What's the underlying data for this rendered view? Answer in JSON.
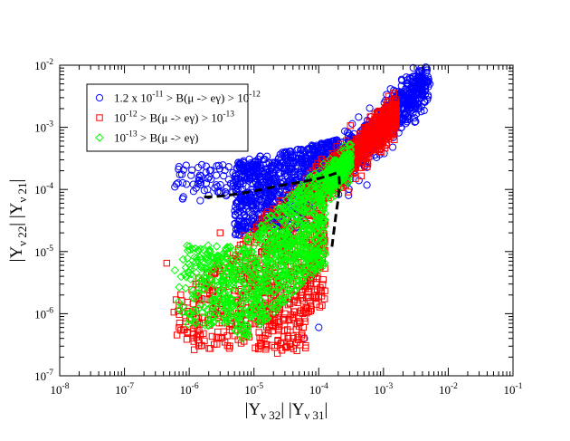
{
  "chart_data": {
    "type": "scatter",
    "x_scale": "log",
    "y_scale": "log",
    "xlim": [
      1e-08,
      0.1
    ],
    "ylim": [
      1e-07,
      0.01
    ],
    "x_ticks": [
      {
        "value": 1e-08,
        "base": "10",
        "exp": "-8"
      },
      {
        "value": 1e-07,
        "base": "10",
        "exp": "-7"
      },
      {
        "value": 1e-06,
        "base": "10",
        "exp": "-6"
      },
      {
        "value": 1e-05,
        "base": "10",
        "exp": "-5"
      },
      {
        "value": 0.0001,
        "base": "10",
        "exp": "-4"
      },
      {
        "value": 0.001,
        "base": "10",
        "exp": "-3"
      },
      {
        "value": 0.01,
        "base": "10",
        "exp": "-2"
      },
      {
        "value": 0.1,
        "base": "10",
        "exp": "-1"
      }
    ],
    "y_ticks": [
      {
        "value": 1e-07,
        "base": "10",
        "exp": "-7"
      },
      {
        "value": 1e-06,
        "base": "10",
        "exp": "-6"
      },
      {
        "value": 1e-05,
        "base": "10",
        "exp": "-5"
      },
      {
        "value": 0.0001,
        "base": "10",
        "exp": "-4"
      },
      {
        "value": 0.001,
        "base": "10",
        "exp": "-3"
      },
      {
        "value": 0.01,
        "base": "10",
        "exp": "-2"
      }
    ],
    "xlabel": {
      "p1": "|Y",
      "s1": "ν 32",
      "p2": "| |Y",
      "s2": "ν 31",
      "p3": "|"
    },
    "ylabel": {
      "p1": "|Y",
      "s1": "ν 22",
      "p2": "| |Y",
      "s2": "ν 21",
      "p3": "|"
    },
    "legend": {
      "placement": "top-left",
      "entries": [
        {
          "marker": "circle",
          "color": "#0000ff",
          "parts": [
            {
              "t": "1.2 x 10"
            },
            {
              "sup": "-11"
            },
            {
              "t": " > B(μ -> eγ) > 10"
            },
            {
              "sup": "-12"
            }
          ]
        },
        {
          "marker": "square",
          "color": "#ff0000",
          "parts": [
            {
              "t": "10"
            },
            {
              "sup": "-12"
            },
            {
              "t": " > B(μ -> eγ) > 10"
            },
            {
              "sup": "-13"
            }
          ]
        },
        {
          "marker": "diamond",
          "color": "#00ff00",
          "parts": [
            {
              "t": "10"
            },
            {
              "sup": "-13"
            },
            {
              "t": " > B(μ -> eγ)"
            }
          ]
        }
      ]
    },
    "series": [
      {
        "marker": "circle",
        "color": "#0000ff",
        "count": 1600,
        "points": [
          [
            2e-06,
            8e-05
          ],
          [
            1e-05,
            0.0002
          ],
          [
            0.0001,
            0.00025
          ],
          [
            0.001,
            0.001
          ],
          [
            0.0052,
            0.005
          ],
          [
            0.0001,
            6e-07
          ],
          [
            6e-05,
            4e-07
          ],
          [
            6e-07,
            0.00011
          ]
        ]
      },
      {
        "marker": "square",
        "color": "#ff0000",
        "count": 1500,
        "points": [
          [
            4.5e-07,
            6.5e-06
          ],
          [
            3e-06,
            2e-05
          ],
          [
            1.5e-05,
            3e-05
          ],
          [
            3e-05,
            1e-06
          ],
          [
            0.0001,
            0.0001
          ],
          [
            0.0003,
            0.0003
          ],
          [
            0.0008,
            0.001
          ],
          [
            2.3e-05,
            2.3e-07
          ]
        ]
      },
      {
        "marker": "diamond",
        "color": "#00ff00",
        "count": 1200,
        "points": [
          [
            6e-07,
            5e-06
          ],
          [
            2e-06,
            1e-05
          ],
          [
            8e-06,
            1e-05
          ],
          [
            3e-05,
            3e-05
          ],
          [
            0.0001,
            0.0001
          ],
          [
            0.00025,
            0.00016
          ],
          [
            1e-06,
            1e-06
          ]
        ]
      }
    ],
    "contour": [
      [
        1.7e-06,
        7.5e-05
      ],
      [
        3e-06,
        7.8e-05
      ],
      [
        6e-06,
        8.5e-05
      ],
      [
        1.2e-05,
        9.8e-05
      ],
      [
        2.5e-05,
        0.000115
      ],
      [
        5e-05,
        0.00013
      ],
      [
        0.0001,
        0.00015
      ],
      [
        0.00015,
        0.00017
      ],
      [
        0.00019,
        0.000185
      ],
      [
        0.000205,
        0.00017
      ],
      [
        0.00021,
        0.00012
      ],
      [
        0.0002,
        7e-05
      ],
      [
        0.000185,
        4e-05
      ],
      [
        0.00017,
        2e-05
      ],
      [
        0.00016,
        1.2e-05
      ]
    ],
    "grid": false
  }
}
